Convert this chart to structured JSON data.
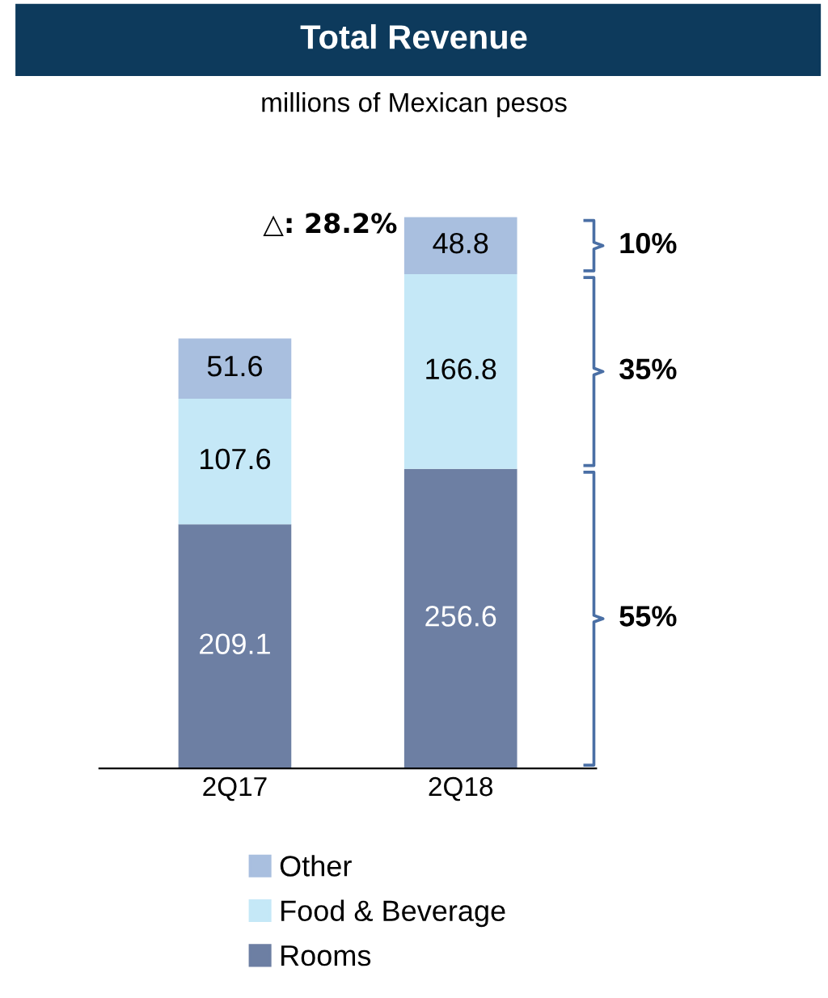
{
  "chart_data": {
    "type": "bar",
    "title": "Total Revenue",
    "subtitle": "millions of Mexican pesos",
    "categories": [
      "2Q17",
      "2Q18"
    ],
    "stacked": true,
    "data_labels": true,
    "legend": "bottom",
    "grid": false,
    "series": [
      {
        "name": "Rooms",
        "color": "#6d7fa3",
        "values": [
          209.1,
          256.6
        ]
      },
      {
        "name": "Food & Beverage",
        "color": "#c5e8f7",
        "values": [
          107.6,
          166.8
        ]
      },
      {
        "name": "Other",
        "color": "#a9bfdf",
        "values": [
          51.6,
          48.8
        ]
      }
    ],
    "annotations": [
      "△: 28.2%",
      "55%",
      "35%",
      "10%"
    ]
  }
}
